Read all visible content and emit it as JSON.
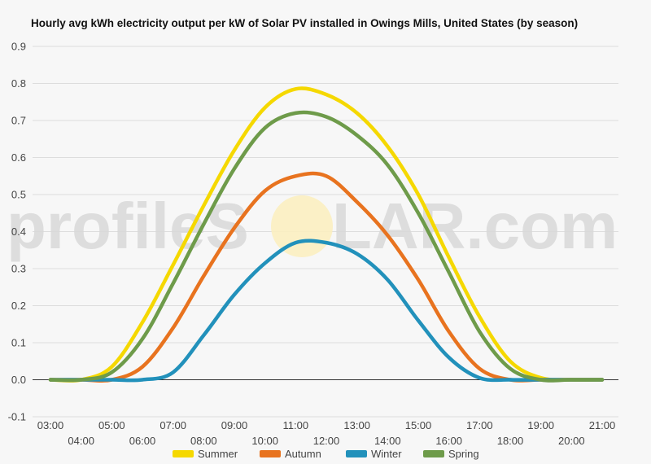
{
  "watermark": {
    "text_left": "profileS",
    "text_right": "LAR.com"
  },
  "chart_data": {
    "type": "line",
    "title": "Hourly avg kWh electricity output per kW of Solar PV installed in Owings Mills, United States (by season)",
    "xlabel": "",
    "ylabel": "",
    "ylim": [
      -0.1,
      0.9
    ],
    "yticks": [
      -0.1,
      0.0,
      0.1,
      0.2,
      0.3,
      0.4,
      0.5,
      0.6,
      0.7,
      0.8,
      0.9
    ],
    "ytick_labels": [
      "-0.1",
      "0.0",
      "0.1",
      "0.2",
      "0.3",
      "0.4",
      "0.5",
      "0.6",
      "0.7",
      "0.8",
      "0.9"
    ],
    "x": [
      "03:00",
      "04:00",
      "05:00",
      "06:00",
      "07:00",
      "08:00",
      "09:00",
      "10:00",
      "11:00",
      "12:00",
      "13:00",
      "14:00",
      "15:00",
      "16:00",
      "17:00",
      "18:00",
      "19:00",
      "20:00",
      "21:00"
    ],
    "grid": true,
    "legend_position": "bottom",
    "series": [
      {
        "name": "Summer",
        "color": "#f5d800",
        "values": [
          0.0,
          0.0,
          0.035,
          0.155,
          0.31,
          0.47,
          0.62,
          0.735,
          0.785,
          0.77,
          0.72,
          0.63,
          0.5,
          0.33,
          0.17,
          0.05,
          0.005,
          0.0,
          0.0
        ]
      },
      {
        "name": "Autumn",
        "color": "#e8731f",
        "values": [
          0.0,
          0.0,
          0.0,
          0.035,
          0.14,
          0.28,
          0.41,
          0.51,
          0.55,
          0.55,
          0.48,
          0.39,
          0.27,
          0.13,
          0.03,
          0.0,
          0.0,
          0.0,
          0.0
        ]
      },
      {
        "name": "Winter",
        "color": "#2291bb",
        "values": [
          0.0,
          0.0,
          0.0,
          0.0,
          0.02,
          0.12,
          0.23,
          0.315,
          0.37,
          0.37,
          0.34,
          0.27,
          0.16,
          0.06,
          0.005,
          0.0,
          0.0,
          0.0,
          0.0
        ]
      },
      {
        "name": "Spring",
        "color": "#6e9b4a",
        "values": [
          0.0,
          0.0,
          0.02,
          0.11,
          0.26,
          0.42,
          0.57,
          0.68,
          0.72,
          0.71,
          0.66,
          0.58,
          0.45,
          0.29,
          0.13,
          0.03,
          0.0,
          0.0,
          0.0
        ]
      }
    ]
  }
}
